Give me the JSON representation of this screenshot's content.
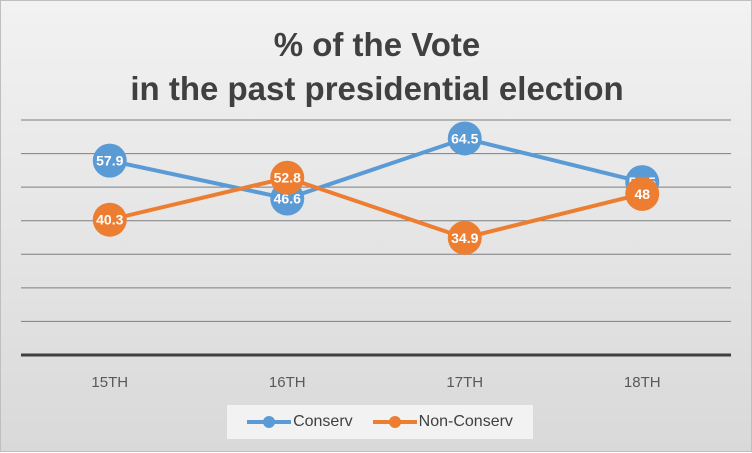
{
  "chart_data": {
    "type": "line",
    "title_lines": [
      "% of the Vote",
      "in the past presidential election"
    ],
    "categories": [
      "15TH",
      "16TH",
      "17TH",
      "18TH"
    ],
    "series": [
      {
        "name": "Conserv",
        "color": "#5b9bd5",
        "values": [
          57.9,
          46.6,
          64.5,
          51.5
        ]
      },
      {
        "name": "Non-Conserv",
        "color": "#ed7d31",
        "values": [
          40.3,
          52.8,
          34.9,
          48
        ]
      }
    ],
    "ylim": [
      0,
      70
    ],
    "y_tick_step": 10,
    "grid": true,
    "data_labels": true,
    "legend_position": "bottom"
  }
}
